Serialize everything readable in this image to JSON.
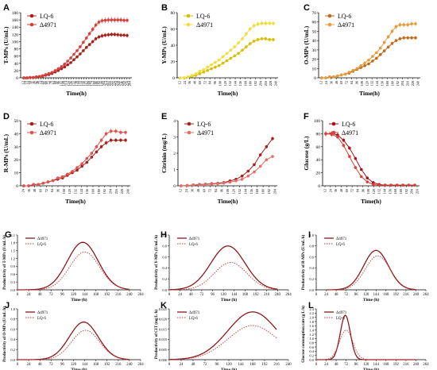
{
  "chart_data": [
    {
      "panel": "A",
      "type": "line",
      "ylabel": "T-MPs (U/mL)",
      "xlabel": "Time(h)",
      "xticks": [
        "12",
        "18",
        "24",
        "30",
        "36",
        "42",
        "48",
        "54",
        "60",
        "66",
        "72",
        "78",
        "84",
        "90",
        "96",
        "102",
        "108",
        "114",
        "120",
        "126",
        "132",
        "138",
        "144",
        "150",
        "156",
        "162",
        "168",
        "174",
        "180",
        "186",
        "192",
        "198",
        "204",
        "210",
        "216",
        "222",
        "228",
        "234",
        "240",
        "246",
        "252",
        "258",
        "264"
      ],
      "yticks": [
        "0",
        "20",
        "40",
        "60",
        "80",
        "100",
        "120",
        "140",
        "160",
        "180"
      ],
      "ylim": [
        0,
        180
      ],
      "legend": [
        "LQ-6",
        "Δ4971"
      ],
      "series": [
        {
          "name": "LQ-6",
          "values": [
            0,
            0,
            1,
            1,
            2,
            3,
            5,
            7,
            9,
            12,
            16,
            20,
            25,
            30,
            36,
            42,
            50,
            58,
            66,
            75,
            84,
            92,
            100,
            108,
            113,
            116,
            118,
            119,
            120,
            120,
            119,
            118,
            118,
            117
          ]
        },
        {
          "name": "Δ4971",
          "values": [
            0,
            0,
            1,
            1,
            3,
            4,
            6,
            9,
            12,
            15,
            20,
            25,
            31,
            38,
            46,
            55,
            65,
            75,
            86,
            98,
            110,
            122,
            134,
            146,
            154,
            158,
            159,
            160,
            160,
            160,
            160,
            160,
            159,
            159
          ]
        }
      ]
    },
    {
      "panel": "B",
      "type": "line",
      "ylabel": "Y-MPs (U/mL)",
      "xlabel": "Time(h)",
      "xticks": [
        "12",
        "24",
        "36",
        "48",
        "60",
        "72",
        "84",
        "96",
        "108",
        "120",
        "132",
        "144",
        "156",
        "168",
        "180",
        "192",
        "204",
        "216",
        "228",
        "240"
      ],
      "yticks": [
        "0",
        "20",
        "40",
        "60",
        "80"
      ],
      "ylim": [
        0,
        80
      ],
      "legend": [
        "LQ-6",
        "Δ4971"
      ],
      "series": [
        {
          "name": "LQ-6",
          "values": [
            0,
            0,
            1,
            2,
            3,
            5,
            7,
            9,
            11,
            13,
            15,
            18,
            21,
            24,
            27,
            30,
            34,
            38,
            42,
            45,
            47,
            48,
            48,
            47,
            47
          ]
        },
        {
          "name": "Δ4971",
          "values": [
            0,
            0,
            1,
            3,
            5,
            8,
            10,
            13,
            16,
            19,
            22,
            26,
            30,
            34,
            38,
            43,
            48,
            54,
            60,
            64,
            66,
            67,
            67,
            67,
            67
          ]
        }
      ]
    },
    {
      "panel": "C",
      "type": "line",
      "ylabel": "O-MPs (U/mL)",
      "xlabel": "Time(h)",
      "xticks": [
        "12",
        "24",
        "36",
        "48",
        "60",
        "72",
        "84",
        "96",
        "108",
        "120",
        "132",
        "144",
        "156",
        "168",
        "180",
        "192",
        "204",
        "216",
        "228",
        "240"
      ],
      "yticks": [
        "0",
        "10",
        "20",
        "30",
        "40",
        "50",
        "60",
        "70"
      ],
      "ylim": [
        0,
        70
      ],
      "legend": [
        "LQ-6",
        "Δ4971"
      ],
      "series": [
        {
          "name": "LQ-6",
          "values": [
            0,
            0,
            1,
            1,
            2,
            3,
            4,
            5,
            7,
            9,
            11,
            13,
            15,
            18,
            21,
            25,
            29,
            33,
            37,
            40,
            42,
            43,
            43,
            43,
            43
          ]
        },
        {
          "name": "Δ4971",
          "values": [
            0,
            0,
            1,
            1,
            2,
            3,
            4,
            6,
            8,
            10,
            13,
            16,
            19,
            23,
            27,
            32,
            38,
            44,
            50,
            55,
            57,
            57,
            57,
            58,
            58
          ]
        }
      ]
    },
    {
      "panel": "D",
      "type": "line",
      "ylabel": "R-MPs (U/mL)",
      "xlabel": "Time(h)",
      "xticks": [
        "24",
        "36",
        "48",
        "60",
        "72",
        "84",
        "96",
        "108",
        "120",
        "132",
        "144",
        "156",
        "168",
        "180",
        "192",
        "204",
        "216",
        "228",
        "240"
      ],
      "yticks": [
        "0",
        "10",
        "20",
        "30",
        "40",
        "50"
      ],
      "ylim": [
        0,
        50
      ],
      "legend": [
        "LQ-6",
        "Δ4971"
      ],
      "series": [
        {
          "name": "LQ-6",
          "values": [
            0,
            0,
            1,
            1,
            2,
            3,
            4,
            5,
            6,
            8,
            10,
            12,
            15,
            18,
            22,
            26,
            30,
            33,
            35,
            35,
            35,
            35
          ]
        },
        {
          "name": "Δ4971",
          "values": [
            0,
            0,
            1,
            1,
            2,
            3,
            4,
            6,
            7,
            9,
            11,
            14,
            17,
            21,
            25,
            30,
            35,
            40,
            42,
            42,
            41,
            41
          ]
        }
      ]
    },
    {
      "panel": "E",
      "type": "line",
      "ylabel": "Citrinin (mg/L)",
      "xlabel": "Time(h)",
      "xticks": [
        "12",
        "24",
        "36",
        "48",
        "60",
        "72",
        "84",
        "96",
        "108",
        "120",
        "132",
        "144",
        "156",
        "168",
        "180",
        "192",
        "204"
      ],
      "yticks": [
        "0",
        "1",
        "2",
        "3",
        "4"
      ],
      "ylim": [
        0,
        4
      ],
      "legend": [
        "LQ-6",
        "Δ4971"
      ],
      "series": [
        {
          "name": "LQ-6",
          "values": [
            0,
            0.02,
            0.05,
            0.08,
            0.1,
            0.13,
            0.15,
            0.2,
            0.3,
            0.4,
            0.6,
            0.9,
            1.3,
            1.9,
            2.4,
            2.9
          ]
        },
        {
          "name": "Δ4971",
          "values": [
            0,
            0.02,
            0.04,
            0.06,
            0.08,
            0.1,
            0.12,
            0.16,
            0.22,
            0.3,
            0.4,
            0.6,
            0.85,
            1.2,
            1.6,
            1.8
          ]
        }
      ]
    },
    {
      "panel": "F",
      "type": "line",
      "ylabel": "Glucose (g/L)",
      "xlabel": "Time(h)",
      "xticks": [
        "12",
        "24",
        "36",
        "48",
        "60",
        "72",
        "84",
        "96",
        "108",
        "120",
        "132",
        "144",
        "156",
        "168",
        "180",
        "192",
        "204",
        "216"
      ],
      "yticks": [
        "0",
        "20",
        "40",
        "60",
        "80",
        "100"
      ],
      "ylim": [
        0,
        100
      ],
      "legend": [
        "LQ-6",
        "Δ4971"
      ],
      "series": [
        {
          "name": "LQ-6",
          "values": [
            80,
            80,
            78,
            70,
            58,
            42,
            25,
            12,
            5,
            2,
            1,
            1,
            1,
            1,
            1,
            1
          ]
        },
        {
          "name": "Δ4971",
          "values": [
            80,
            79,
            75,
            62,
            45,
            28,
            14,
            6,
            2,
            1,
            1,
            1,
            1,
            1,
            1,
            1
          ]
        }
      ]
    },
    {
      "panel": "G",
      "type": "line",
      "ylabel": "Productivity of T-MPs (U/mL/h)",
      "xlabel": "Time (h)",
      "xticks": [
        "0",
        "24",
        "48",
        "72",
        "96",
        "120",
        "144",
        "168",
        "192",
        "216",
        "240",
        "264"
      ],
      "yticks": [
        "0.0",
        "0.3",
        "0.6",
        "0.9",
        "1.2",
        "1.5",
        "1.8",
        "2.1"
      ],
      "xlim": [
        0,
        264
      ],
      "ylim": [
        0,
        2.1
      ],
      "legend": [
        "Δ4971",
        "LQ-6"
      ],
      "peaks": [
        {
          "name": "Δ4971",
          "x": 140,
          "y": 1.82,
          "w": 33
        },
        {
          "name": "LQ-6",
          "x": 144,
          "y": 1.45,
          "w": 32
        }
      ],
      "xrange": [
        0,
        240
      ]
    },
    {
      "panel": "H",
      "type": "line",
      "ylabel": "Productivity of Y-MPs (U/mL/h)",
      "xlabel": "Time (h)",
      "xticks": [
        "0",
        "24",
        "48",
        "72",
        "96",
        "120",
        "144",
        "168",
        "192",
        "216",
        "240",
        "264"
      ],
      "yticks": [
        "0.0",
        "0.2",
        "0.4",
        "0.6",
        "0.8",
        "1.0"
      ],
      "xlim": [
        0,
        264
      ],
      "ylim": [
        0,
        1.0
      ],
      "legend": [
        "Δ4971",
        "LQ-6"
      ],
      "peaks": [
        {
          "name": "Δ4971",
          "x": 130,
          "y": 0.8,
          "w": 38
        },
        {
          "name": "LQ-6",
          "x": 136,
          "y": 0.5,
          "w": 36
        }
      ],
      "xrange": [
        0,
        240
      ]
    },
    {
      "panel": "I",
      "type": "line",
      "ylabel": "Productivity of R-MPs (U/mL/h)",
      "xlabel": "Time (h)",
      "xticks": [
        "0",
        "24",
        "48",
        "72",
        "96",
        "120",
        "144",
        "168",
        "192",
        "216",
        "240",
        "264"
      ],
      "yticks": [
        "0.0",
        "0.2",
        "0.4",
        "0.6",
        "0.8",
        "1.0"
      ],
      "xlim": [
        0,
        264
      ],
      "ylim": [
        0,
        1.0
      ],
      "legend": [
        "Δ4971",
        "LQ-6"
      ],
      "peaks": [
        {
          "name": "Δ4971",
          "x": 144,
          "y": 0.72,
          "w": 30
        },
        {
          "name": "LQ-6",
          "x": 148,
          "y": 0.62,
          "w": 30
        }
      ],
      "xrange": [
        24,
        240
      ]
    },
    {
      "panel": "J",
      "type": "line",
      "ylabel": "Productivity of O-MPs (U/mL/h)",
      "xlabel": "Time (h)",
      "xticks": [
        "0",
        "24",
        "48",
        "72",
        "96",
        "120",
        "144",
        "168",
        "192",
        "216",
        "240",
        "264"
      ],
      "yticks": [
        "0.0",
        "0.2",
        "0.4",
        "0.6",
        "0.8",
        "1.0"
      ],
      "xlim": [
        0,
        264
      ],
      "ylim": [
        0,
        1.0
      ],
      "legend": [
        "Δ4971",
        "LQ-6"
      ],
      "peaks": [
        {
          "name": "Δ4971",
          "x": 142,
          "y": 0.74,
          "w": 31
        },
        {
          "name": "LQ-6",
          "x": 146,
          "y": 0.58,
          "w": 30
        }
      ],
      "xrange": [
        0,
        240
      ]
    },
    {
      "panel": "K",
      "type": "line",
      "ylabel": "Productivity of CIT (mg/L/h)",
      "xlabel": "Time (h)",
      "xticks": [
        "0",
        "24",
        "48",
        "72",
        "96",
        "120",
        "144",
        "168",
        "192",
        "216",
        "240"
      ],
      "yticks": [
        "0.000",
        "0.005",
        "0.010",
        "0.015",
        "0.020",
        "0.025"
      ],
      "xlim": [
        0,
        240
      ],
      "ylim": [
        0,
        0.025
      ],
      "legend": [
        "Δ4971",
        "LQ-6"
      ],
      "peaks": [
        {
          "name": "Δ4971",
          "x": 168,
          "y": 0.0235,
          "w": 50
        },
        {
          "name": "LQ-6",
          "x": 168,
          "y": 0.0168,
          "w": 50
        }
      ],
      "xrange": [
        0,
        216
      ]
    },
    {
      "panel": "L",
      "type": "line",
      "ylabel": "Glucose consumption rate (g/L/h)",
      "xlabel": "Time (h)",
      "xticks": [
        "0",
        "24",
        "48",
        "72",
        "96",
        "120",
        "144",
        "168",
        "192",
        "216",
        "240",
        "264"
      ],
      "yticks": [
        "0.0",
        "0.2",
        "0.4",
        "0.6",
        "0.8",
        "1.0",
        "1.2",
        "1.4",
        "1.6",
        "1.8",
        "2.0",
        "2.2",
        "2.4"
      ],
      "xlim": [
        0,
        264
      ],
      "ylim": [
        0,
        2.4
      ],
      "legend": [
        "Δ4971",
        "LQ-6"
      ],
      "peaks": [
        {
          "name": "Δ4971",
          "x": 70,
          "y": 2.1,
          "w": 12
        },
        {
          "name": "LQ-6",
          "x": 72,
          "y": 1.4,
          "w": 16
        }
      ],
      "xrange": [
        0,
        240
      ]
    }
  ],
  "colors": {
    "A": [
      "#c0312b",
      "#d83a34"
    ],
    "B": [
      "#d4b800",
      "#f0d93a"
    ],
    "C": [
      "#c97a1a",
      "#e59a3a"
    ],
    "D": [
      "#b52a26",
      "#e04a44"
    ],
    "E": [
      "#b82a26",
      "#e26a64"
    ],
    "F": [
      "#b01a1a",
      "#d83a34"
    ],
    "G": [
      "#8b1a1a",
      "#c0312b"
    ]
  }
}
